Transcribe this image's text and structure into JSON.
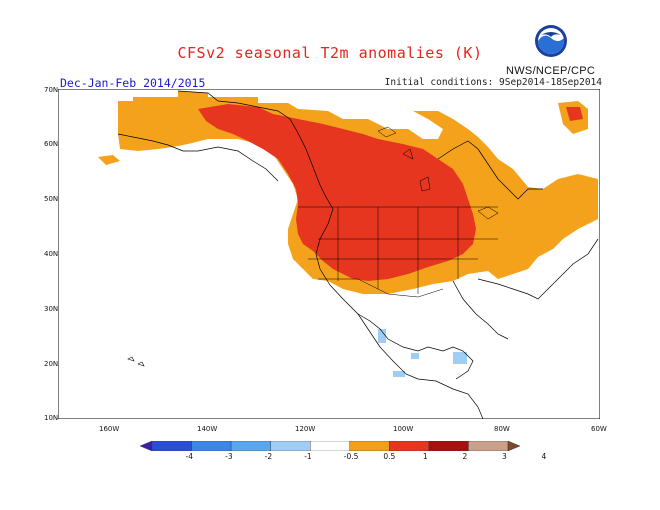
{
  "title": "CFSv2 seasonal T2m anomalies (K)",
  "period": "Dec-Jan-Feb 2014/2015",
  "initial_conditions": "Initial conditions: 9Sep2014-18Sep2014",
  "agency": "NWS/NCEP/CPC",
  "logo_icon": "noaa-logo-icon",
  "lat_labels": [
    "70N",
    "60N",
    "50N",
    "40N",
    "30N",
    "20N",
    "10N"
  ],
  "lon_labels": [
    "160W",
    "140W",
    "120W",
    "100W",
    "80W",
    "60W"
  ],
  "colorbar": {
    "labels": [
      "-4",
      "-3",
      "-2",
      "-1",
      "-0.5",
      "0.5",
      "1",
      "2",
      "3",
      "4"
    ],
    "colors": [
      "#3b1fa8",
      "#2a4fd6",
      "#3d86e8",
      "#5aa7ef",
      "#9fcdf3",
      "#ffffff",
      "#f39f1a",
      "#e8351f",
      "#a81010",
      "#c9a08a",
      "#7a4a2a"
    ]
  }
}
